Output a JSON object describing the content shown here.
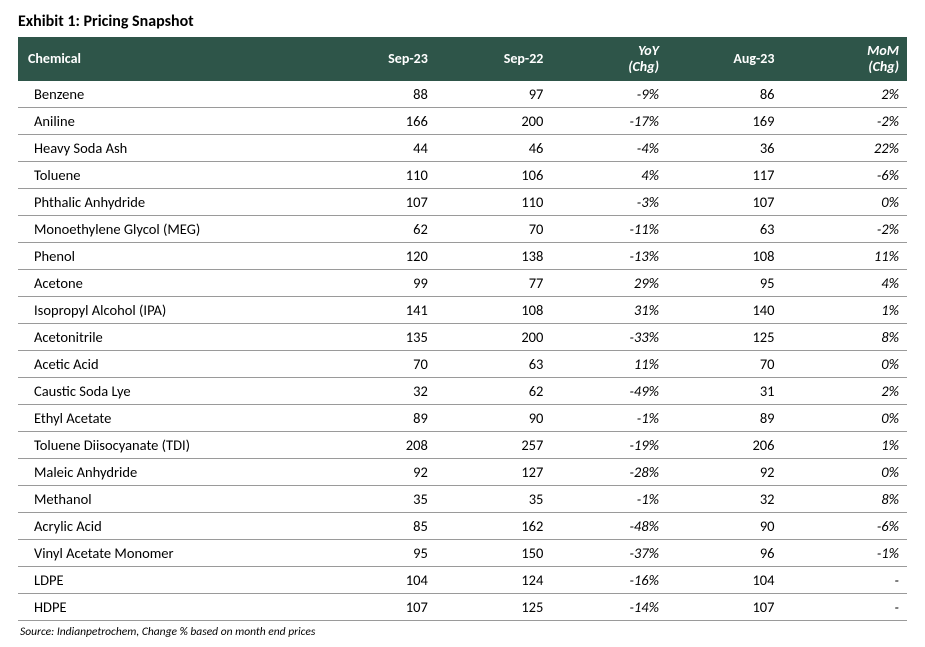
{
  "exhibit": {
    "title": "Exhibit 1: Pricing Snapshot",
    "source_note": "Source: Indianpetrochem, Change % based on month end prices"
  },
  "table": {
    "header_bg": "#2e5549",
    "header_fg": "#ffffff",
    "row_border_color": "#9a9a9a",
    "font_family": "Calibri",
    "columns": [
      {
        "key": "chemical",
        "label": "Chemical",
        "align": "left",
        "italic": false
      },
      {
        "key": "sep23",
        "label": "Sep-23",
        "align": "right",
        "italic": false
      },
      {
        "key": "sep22",
        "label": "Sep-22",
        "align": "right",
        "italic": false
      },
      {
        "key": "yoy",
        "label": "YoY",
        "sublabel": "(Chg)",
        "align": "right",
        "italic": true
      },
      {
        "key": "aug23",
        "label": "Aug-23",
        "align": "right",
        "italic": false
      },
      {
        "key": "mom",
        "label": "MoM",
        "sublabel": "(Chg)",
        "align": "right",
        "italic": true
      }
    ],
    "rows": [
      {
        "chemical": "Benzene",
        "sep23": "88",
        "sep22": "97",
        "yoy": "-9%",
        "aug23": "86",
        "mom": "2%"
      },
      {
        "chemical": "Aniline",
        "sep23": "166",
        "sep22": "200",
        "yoy": "-17%",
        "aug23": "169",
        "mom": "-2%"
      },
      {
        "chemical": "Heavy Soda Ash",
        "sep23": "44",
        "sep22": "46",
        "yoy": "-4%",
        "aug23": "36",
        "mom": "22%"
      },
      {
        "chemical": "Toluene",
        "sep23": "110",
        "sep22": "106",
        "yoy": "4%",
        "aug23": "117",
        "mom": "-6%"
      },
      {
        "chemical": "Phthalic Anhydride",
        "sep23": "107",
        "sep22": "110",
        "yoy": "-3%",
        "aug23": "107",
        "mom": "0%"
      },
      {
        "chemical": "Monoethylene Glycol (MEG)",
        "sep23": "62",
        "sep22": "70",
        "yoy": "-11%",
        "aug23": "63",
        "mom": "-2%"
      },
      {
        "chemical": "Phenol",
        "sep23": "120",
        "sep22": "138",
        "yoy": "-13%",
        "aug23": "108",
        "mom": "11%"
      },
      {
        "chemical": "Acetone",
        "sep23": "99",
        "sep22": "77",
        "yoy": "29%",
        "aug23": "95",
        "mom": "4%"
      },
      {
        "chemical": "Isopropyl Alcohol (IPA)",
        "sep23": "141",
        "sep22": "108",
        "yoy": "31%",
        "aug23": "140",
        "mom": "1%"
      },
      {
        "chemical": "Acetonitrile",
        "sep23": "135",
        "sep22": "200",
        "yoy": "-33%",
        "aug23": "125",
        "mom": "8%"
      },
      {
        "chemical": "Acetic Acid",
        "sep23": "70",
        "sep22": "63",
        "yoy": "11%",
        "aug23": "70",
        "mom": "0%"
      },
      {
        "chemical": "Caustic Soda Lye",
        "sep23": "32",
        "sep22": "62",
        "yoy": "-49%",
        "aug23": "31",
        "mom": "2%"
      },
      {
        "chemical": "Ethyl Acetate",
        "sep23": "89",
        "sep22": "90",
        "yoy": "-1%",
        "aug23": "89",
        "mom": "0%"
      },
      {
        "chemical": "Toluene Diisocyanate (TDI)",
        "sep23": "208",
        "sep22": "257",
        "yoy": "-19%",
        "aug23": "206",
        "mom": "1%"
      },
      {
        "chemical": "Maleic Anhydride",
        "sep23": "92",
        "sep22": "127",
        "yoy": "-28%",
        "aug23": "92",
        "mom": "0%"
      },
      {
        "chemical": "Methanol",
        "sep23": "35",
        "sep22": "35",
        "yoy": "-1%",
        "aug23": "32",
        "mom": "8%"
      },
      {
        "chemical": "Acrylic Acid",
        "sep23": "85",
        "sep22": "162",
        "yoy": "-48%",
        "aug23": "90",
        "mom": "-6%"
      },
      {
        "chemical": "Vinyl Acetate Monomer",
        "sep23": "95",
        "sep22": "150",
        "yoy": "-37%",
        "aug23": "96",
        "mom": "-1%"
      },
      {
        "chemical": "LDPE",
        "sep23": "104",
        "sep22": "124",
        "yoy": "-16%",
        "aug23": "104",
        "mom": "-"
      },
      {
        "chemical": "HDPE",
        "sep23": "107",
        "sep22": "125",
        "yoy": "-14%",
        "aug23": "107",
        "mom": "-"
      }
    ]
  }
}
